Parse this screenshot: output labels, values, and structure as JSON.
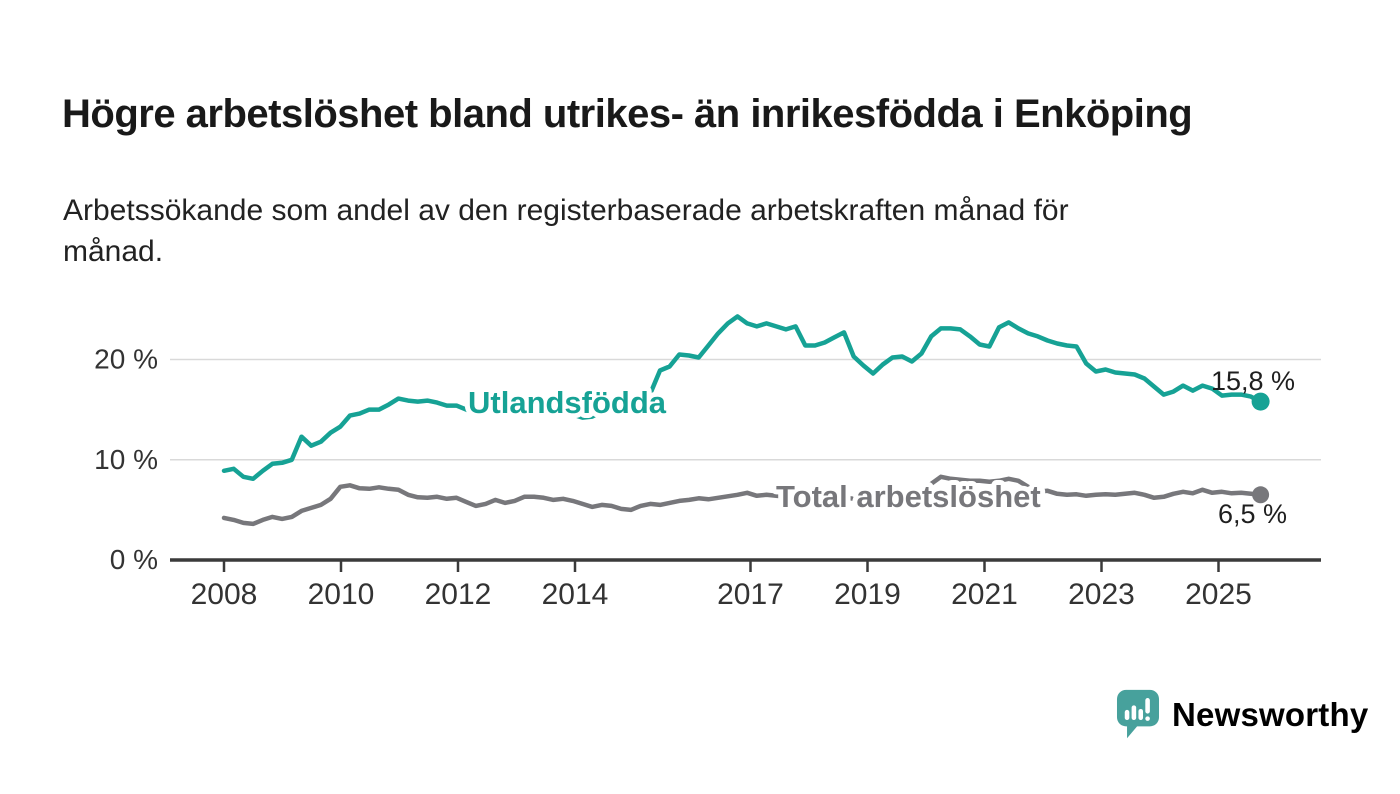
{
  "header": {
    "title": "Högre arbetslöshet bland utrikes- än inrikesfödda i Enköping",
    "subtitle_lines": [
      "Arbetssökande som andel av den registerbaserade arbetskraften månad för",
      "månad."
    ]
  },
  "chart_data": {
    "type": "line",
    "title": "Högre arbetslöshet bland utrikes- än inrikesfödda i Enköping",
    "subtitle": "Arbetssökande som andel av den registerbaserade arbetskraften månad för månad.",
    "x_start": 2008.0,
    "x_end": 2025.72,
    "x_tick_years": [
      2008,
      2010,
      2012,
      2014,
      2017,
      2019,
      2021,
      2023,
      2025
    ],
    "x_tick_labels": [
      "2008",
      "2010",
      "2012",
      "2014",
      "2017",
      "2019",
      "2021",
      "2023",
      "2025"
    ],
    "y_ticks": [
      {
        "value": 0,
        "label": "0 %"
      },
      {
        "value": 10,
        "label": "10 %"
      },
      {
        "value": 20,
        "label": "20 %"
      }
    ],
    "ylim": [
      0,
      26
    ],
    "grid": "horizontal",
    "legend_position": "inline-labels",
    "axis_color": "#3a3a3a",
    "grid_color": "#d9d9d9",
    "series": [
      {
        "name": "Utlandsfödda",
        "color": "#16a295",
        "end_label": "15,8 %",
        "end_value": 15.8,
        "values": [
          8.9,
          9.1,
          8.3,
          8.1,
          8.9,
          9.6,
          9.7,
          10.0,
          12.3,
          11.4,
          11.8,
          12.7,
          13.3,
          14.4,
          14.6,
          15.0,
          15.0,
          15.5,
          16.1,
          15.9,
          15.8,
          15.9,
          15.7,
          15.4,
          15.4,
          15.0,
          14.6,
          14.9,
          15.1,
          15.0,
          15.2,
          15.1,
          15.3,
          15.2,
          15.0,
          14.9,
          14.5,
          14.2,
          14.3,
          14.8,
          15.1,
          15.4,
          15.8,
          16.2,
          16.6,
          18.9,
          19.3,
          20.5,
          20.4,
          20.2,
          21.4,
          22.6,
          23.6,
          24.3,
          23.6,
          23.3,
          23.6,
          23.3,
          23.0,
          23.3,
          21.4,
          21.4,
          21.7,
          22.2,
          22.7,
          20.3,
          19.4,
          18.6,
          19.5,
          20.2,
          20.3,
          19.8,
          20.6,
          22.3,
          23.1,
          23.1,
          23.0,
          22.3,
          21.5,
          21.3,
          23.2,
          23.7,
          23.1,
          22.6,
          22.3,
          21.9,
          21.6,
          21.4,
          21.3,
          19.6,
          18.8,
          19.0,
          18.7,
          18.6,
          18.5,
          18.1,
          17.3,
          16.5,
          16.8,
          17.4,
          16.9,
          17.4,
          17.1,
          16.4,
          16.5,
          16.5,
          16.3,
          15.8
        ]
      },
      {
        "name": "Total arbetslöshet",
        "color": "#77777b",
        "end_label": "6,5 %",
        "end_value": 6.5,
        "values": [
          4.2,
          4.0,
          3.7,
          3.6,
          4.0,
          4.3,
          4.1,
          4.3,
          4.9,
          5.2,
          5.5,
          6.1,
          7.3,
          7.45,
          7.15,
          7.1,
          7.25,
          7.1,
          7.0,
          6.5,
          6.25,
          6.2,
          6.3,
          6.1,
          6.2,
          5.8,
          5.4,
          5.6,
          6.0,
          5.7,
          5.9,
          6.3,
          6.3,
          6.2,
          6.0,
          6.1,
          5.9,
          5.6,
          5.3,
          5.5,
          5.4,
          5.1,
          5.0,
          5.4,
          5.6,
          5.5,
          5.7,
          5.9,
          6.0,
          6.15,
          6.05,
          6.2,
          6.35,
          6.5,
          6.7,
          6.4,
          6.5,
          6.4,
          6.3,
          6.4,
          6.3,
          6.2,
          6.3,
          6.2,
          6.25,
          6.1,
          6.0,
          6.1,
          6.2,
          6.3,
          6.25,
          6.3,
          6.5,
          7.6,
          8.3,
          8.1,
          8.0,
          7.9,
          7.9,
          7.8,
          7.9,
          8.1,
          7.9,
          7.3,
          6.8,
          6.9,
          6.6,
          6.5,
          6.55,
          6.4,
          6.5,
          6.55,
          6.5,
          6.6,
          6.7,
          6.5,
          6.2,
          6.3,
          6.6,
          6.8,
          6.65,
          7.0,
          6.7,
          6.8,
          6.65,
          6.7,
          6.6,
          6.5
        ]
      }
    ]
  },
  "footer": {
    "brand": "Newsworthy",
    "brand_color": "#3f9e99",
    "icon": "newsworthy-speech-bubble-bar-chart-icon",
    "icon_color": "#47a19c"
  }
}
